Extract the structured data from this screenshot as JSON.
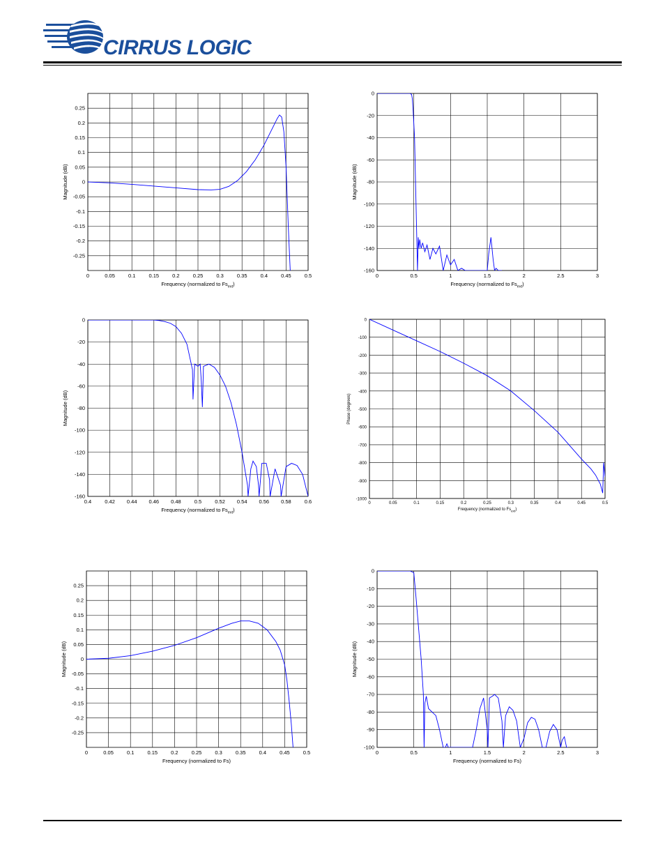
{
  "header": {
    "brand": "CIRRUS LOGIC",
    "reg_mark": "®",
    "brand_color": "#1b4f9c"
  },
  "chart_data": [
    {
      "id": "c1",
      "type": "line",
      "xlabel": "Frequency (normalized to Fs",
      "xlabel_sub": "ext",
      "xlabel_end": ")",
      "ylabel": "Magnitude (dB)",
      "xlim": [
        0,
        0.5
      ],
      "ylim": [
        -0.3,
        0.3
      ],
      "xticks": [
        0,
        0.05,
        0.1,
        0.15,
        0.2,
        0.25,
        0.3,
        0.35,
        0.4,
        0.45,
        0.5
      ],
      "xtick_labels": [
        "0",
        "0.05",
        "0.1",
        "0.15",
        "0.2",
        "0.25",
        "0.3",
        "0.35",
        "0.4",
        "0.45",
        "0.5"
      ],
      "yticks": [
        -0.25,
        -0.2,
        -0.15,
        -0.1,
        -0.05,
        0,
        0.05,
        0.1,
        0.15,
        0.2,
        0.25
      ],
      "ytick_labels": [
        "-0.25",
        "-0.2",
        "-0.15",
        "-0.1",
        "-0.05",
        "0",
        "0.05",
        "0.1",
        "0.15",
        "0.2",
        "0.25"
      ],
      "grid": true,
      "color": "#0000ff",
      "series": [
        {
          "x": [
            0,
            0.05,
            0.1,
            0.15,
            0.2,
            0.25,
            0.28,
            0.3,
            0.32,
            0.34,
            0.36,
            0.38,
            0.4,
            0.42,
            0.43,
            0.435,
            0.44,
            0.445,
            0.45,
            0.455,
            0.46
          ],
          "y": [
            0,
            -0.003,
            -0.008,
            -0.014,
            -0.02,
            -0.026,
            -0.027,
            -0.025,
            -0.015,
            0.005,
            0.035,
            0.075,
            0.125,
            0.185,
            0.215,
            0.227,
            0.22,
            0.17,
            0.05,
            -0.15,
            -0.32
          ]
        }
      ]
    },
    {
      "id": "c2",
      "type": "line",
      "xlabel": "Frequency (normalized to Fs",
      "xlabel_sub": "ext",
      "xlabel_end": ")",
      "ylabel": "Magnitude (dB)",
      "xlim": [
        0,
        3
      ],
      "ylim": [
        -160,
        0
      ],
      "xticks": [
        0,
        0.5,
        1,
        1.5,
        2,
        2.5,
        3
      ],
      "xtick_labels": [
        "0",
        "0.5",
        "1",
        "1.5",
        "2",
        "2.5",
        "3"
      ],
      "yticks": [
        -160,
        -140,
        -120,
        -100,
        -80,
        -60,
        -40,
        -20,
        0
      ],
      "ytick_labels": [
        "-160",
        "-140",
        "-120",
        "-100",
        "-80",
        "-60",
        "-40",
        "-20",
        "0"
      ],
      "grid": true,
      "color": "#0000ff",
      "series": [
        {
          "x": [
            0,
            0.45,
            0.47,
            0.48,
            0.49,
            0.5,
            0.51,
            0.52,
            0.53,
            0.54,
            0.55,
            0.56,
            0.57,
            0.58,
            0.6,
            0.62,
            0.65,
            0.68,
            0.72,
            0.76,
            0.8,
            0.85,
            0.9,
            0.95,
            1.0,
            1.05,
            1.1,
            1.15,
            1.2,
            1.5,
            1.52,
            1.55,
            1.58,
            1.6,
            1.62,
            1.65,
            1.7
          ],
          "y": [
            0,
            0,
            -1,
            -5,
            -15,
            -27,
            -40,
            -70,
            -100,
            -130,
            -160,
            -130,
            -140,
            -132,
            -140,
            -135,
            -143,
            -137,
            -150,
            -140,
            -145,
            -138,
            -160,
            -146,
            -155,
            -150,
            -160,
            -158,
            -160,
            -160,
            -145,
            -130,
            -150,
            -160,
            -158,
            -160,
            -160
          ]
        }
      ]
    },
    {
      "id": "c3",
      "type": "line",
      "xlabel": "Frequency (normalized to Fs",
      "xlabel_sub": "ext",
      "xlabel_end": ")",
      "ylabel": "Magnitude (dB)",
      "xlim": [
        0.4,
        0.6
      ],
      "ylim": [
        -160,
        0
      ],
      "xticks": [
        0.4,
        0.42,
        0.44,
        0.46,
        0.48,
        0.5,
        0.52,
        0.54,
        0.56,
        0.58,
        0.6
      ],
      "xtick_labels": [
        "0.4",
        "0.42",
        "0.44",
        "0.46",
        "0.48",
        "0.5",
        "0.52",
        "0.54",
        "0.56",
        "0.58",
        "0.6"
      ],
      "yticks": [
        -160,
        -140,
        -120,
        -100,
        -80,
        -60,
        -40,
        -20,
        0
      ],
      "ytick_labels": [
        "-160",
        "-140",
        "-120",
        "-100",
        "-80",
        "-60",
        "-40",
        "-20",
        "0"
      ],
      "grid": true,
      "color": "#0000ff",
      "series": [
        {
          "x": [
            0.4,
            0.45,
            0.46,
            0.465,
            0.47,
            0.475,
            0.48,
            0.485,
            0.49,
            0.495,
            0.4955,
            0.497,
            0.5,
            0.502,
            0.503,
            0.504,
            0.505,
            0.51,
            0.515,
            0.52,
            0.525,
            0.53,
            0.535,
            0.54,
            0.545,
            0.5455,
            0.548,
            0.55,
            0.553,
            0.555,
            0.5555,
            0.558,
            0.562,
            0.565,
            0.5655,
            0.57,
            0.575,
            0.5755,
            0.58,
            0.585,
            0.59,
            0.595,
            0.6
          ],
          "y": [
            0,
            0,
            0,
            -0.5,
            -1.5,
            -3,
            -6,
            -12,
            -22,
            -45,
            -72,
            -40,
            -42,
            -40,
            -55,
            -79,
            -42,
            -40,
            -43,
            -50,
            -60,
            -75,
            -95,
            -120,
            -150,
            -160,
            -135,
            -128,
            -133,
            -150,
            -160,
            -130,
            -130,
            -145,
            -160,
            -135,
            -150,
            -160,
            -133,
            -130,
            -132,
            -140,
            -160
          ]
        }
      ]
    },
    {
      "id": "c4",
      "type": "line",
      "xlabel": "Frequency (normalized to Fs",
      "xlabel_sub": "ext",
      "xlabel_end": ")",
      "ylabel": "Phase (degrees)",
      "xlim": [
        0,
        0.5
      ],
      "ylim": [
        -1000,
        0
      ],
      "xticks": [
        0,
        0.05,
        0.1,
        0.15,
        0.2,
        0.25,
        0.3,
        0.35,
        0.4,
        0.45,
        0.5
      ],
      "xtick_labels": [
        "0",
        "0.05",
        "0.1",
        "0.15",
        "0.2",
        "0.25",
        "0.3",
        "0.35",
        "0.4",
        "0.45",
        "0.5"
      ],
      "yticks": [
        -1000,
        -900,
        -800,
        -700,
        -600,
        -500,
        -400,
        -300,
        -200,
        -100,
        0
      ],
      "ytick_labels": [
        "-1000",
        "-900",
        "-800",
        "-700",
        "-600",
        "-500",
        "-400",
        "-300",
        "-200",
        "-100",
        "0"
      ],
      "grid": true,
      "color": "#0000ff",
      "series": [
        {
          "x": [
            0,
            0.05,
            0.1,
            0.15,
            0.2,
            0.25,
            0.3,
            0.35,
            0.4,
            0.45,
            0.47,
            0.48,
            0.49,
            0.495,
            0.497,
            0.5
          ],
          "y": [
            0,
            -60,
            -120,
            -180,
            -245,
            -315,
            -400,
            -510,
            -630,
            -780,
            -835,
            -870,
            -920,
            -970,
            -800,
            -880
          ]
        }
      ]
    },
    {
      "id": "c5",
      "type": "line",
      "xlabel": "Frequency (normalized to Fs)",
      "ylabel": "Magnitude (dB)",
      "xlim": [
        0,
        0.5
      ],
      "ylim": [
        -0.3,
        0.3
      ],
      "xticks": [
        0,
        0.05,
        0.1,
        0.15,
        0.2,
        0.25,
        0.3,
        0.35,
        0.4,
        0.45,
        0.5
      ],
      "xtick_labels": [
        "0",
        "0.05",
        "0.1",
        "0.15",
        "0.2",
        "0.25",
        "0.3",
        "0.35",
        "0.4",
        "0.45",
        "0.5"
      ],
      "yticks": [
        -0.25,
        -0.2,
        -0.15,
        -0.1,
        -0.05,
        0,
        0.05,
        0.1,
        0.15,
        0.2,
        0.25
      ],
      "ytick_labels": [
        "-0.25",
        "-0.2",
        "-0.15",
        "-0.1",
        "-0.05",
        "0",
        "0.05",
        "0.1",
        "0.15",
        "0.2",
        "0.25"
      ],
      "grid": true,
      "color": "#0000ff",
      "series": [
        {
          "x": [
            0,
            0.05,
            0.1,
            0.15,
            0.2,
            0.25,
            0.3,
            0.33,
            0.35,
            0.37,
            0.39,
            0.41,
            0.43,
            0.44,
            0.45,
            0.455,
            0.46,
            0.465,
            0.47
          ],
          "y": [
            0,
            0.003,
            0.012,
            0.027,
            0.047,
            0.073,
            0.105,
            0.122,
            0.13,
            0.13,
            0.122,
            0.1,
            0.06,
            0.03,
            -0.02,
            -0.07,
            -0.14,
            -0.22,
            -0.32
          ]
        }
      ]
    },
    {
      "id": "c6",
      "type": "line",
      "xlabel": "Frequency (normalized to Fs)",
      "ylabel": "Magnitude (dB)",
      "xlim": [
        0,
        3
      ],
      "ylim": [
        -100,
        0
      ],
      "xticks": [
        0,
        0.5,
        1,
        1.5,
        2,
        2.5,
        3
      ],
      "xtick_labels": [
        "0",
        "0.5",
        "1",
        "1.5",
        "2",
        "2.5",
        "3"
      ],
      "yticks": [
        -100,
        -90,
        -80,
        -70,
        -60,
        -50,
        -40,
        -30,
        -20,
        -10,
        0
      ],
      "ytick_labels": [
        "-100",
        "-90",
        "-80",
        "-70",
        "-60",
        "-50",
        "-40",
        "-30",
        "-20",
        "-10",
        "0"
      ],
      "grid": true,
      "color": "#0000ff",
      "series": [
        {
          "x": [
            0,
            0.45,
            0.5,
            0.53,
            0.56,
            0.6,
            0.63,
            0.64,
            0.65,
            0.67,
            0.7,
            0.75,
            0.8,
            0.85,
            0.9,
            0.93,
            0.95,
            0.97,
            1.0,
            1.2,
            1.3,
            1.35,
            1.4,
            1.45,
            1.5,
            1.51,
            1.53,
            1.57,
            1.6,
            1.65,
            1.7,
            1.72,
            1.75,
            1.8,
            1.85,
            1.9,
            1.95,
            2.0,
            2.05,
            2.1,
            2.15,
            2.2,
            2.25,
            2.3,
            2.35,
            2.4,
            2.45,
            2.5,
            2.52,
            2.55,
            2.58,
            2.6
          ],
          "y": [
            0,
            0,
            -1,
            -15,
            -30,
            -50,
            -70,
            -100,
            -75,
            -71,
            -78,
            -80,
            -82,
            -90,
            -100,
            -100,
            -98,
            -100,
            -100,
            -100,
            -100,
            -90,
            -78,
            -72,
            -90,
            -100,
            -72,
            -71,
            -70,
            -72,
            -85,
            -100,
            -82,
            -77,
            -79,
            -85,
            -100,
            -95,
            -86,
            -83,
            -84,
            -90,
            -100,
            -100,
            -91,
            -87,
            -90,
            -100,
            -96,
            -94,
            -100,
            -100
          ]
        }
      ]
    }
  ]
}
